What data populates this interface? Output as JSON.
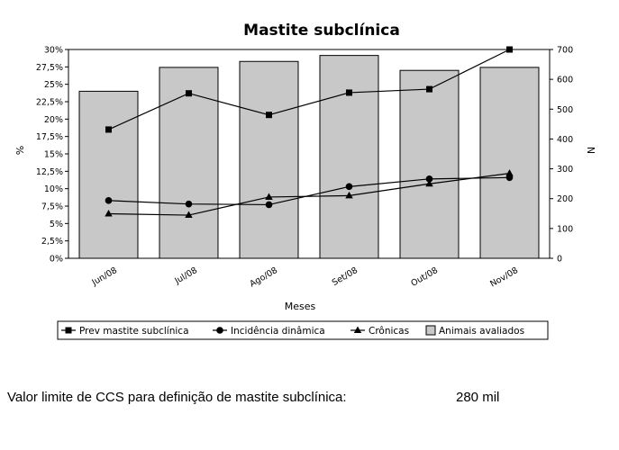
{
  "chart_data": {
    "type": "bar",
    "title": "Mastite subclínica",
    "xlabel": "Meses",
    "ylabel_left": "%",
    "ylabel_right": "N",
    "categories": [
      "Jun/08",
      "Jul/08",
      "Ago/08",
      "Set/08",
      "Out/08",
      "Nov/08"
    ],
    "ylim_left": [
      0,
      0.3
    ],
    "ylim_right": [
      0,
      700
    ],
    "yticks_left": [
      "0%",
      "2,5%",
      "5%",
      "7,5%",
      "10%",
      "12,5%",
      "15%",
      "17,5%",
      "20%",
      "22,5%",
      "25%",
      "27,5%",
      "30%"
    ],
    "yticks_right": [
      "0",
      "100",
      "200",
      "300",
      "400",
      "500",
      "600",
      "700"
    ],
    "grid": false,
    "legend_position": "bottom",
    "bars": {
      "name": "Animais avaliados",
      "axis": "right",
      "color": "#c8c8c8",
      "values": [
        560,
        640,
        660,
        680,
        630,
        640
      ]
    },
    "series": [
      {
        "name": "Prev mastite subclínica",
        "axis": "left",
        "marker": "square",
        "values": [
          0.185,
          0.237,
          0.206,
          0.238,
          0.243,
          0.3
        ]
      },
      {
        "name": "Incidência dinâmica",
        "axis": "left",
        "marker": "circle",
        "values": [
          0.083,
          0.078,
          0.077,
          0.103,
          0.114,
          0.116
        ]
      },
      {
        "name": "Crônicas",
        "axis": "left",
        "marker": "triangle",
        "values": [
          0.064,
          0.062,
          0.088,
          0.09,
          0.107,
          0.122
        ]
      }
    ]
  },
  "footer": {
    "label": "Valor limite de CCS para definição de mastite subclínica:",
    "value": "280 mil"
  }
}
